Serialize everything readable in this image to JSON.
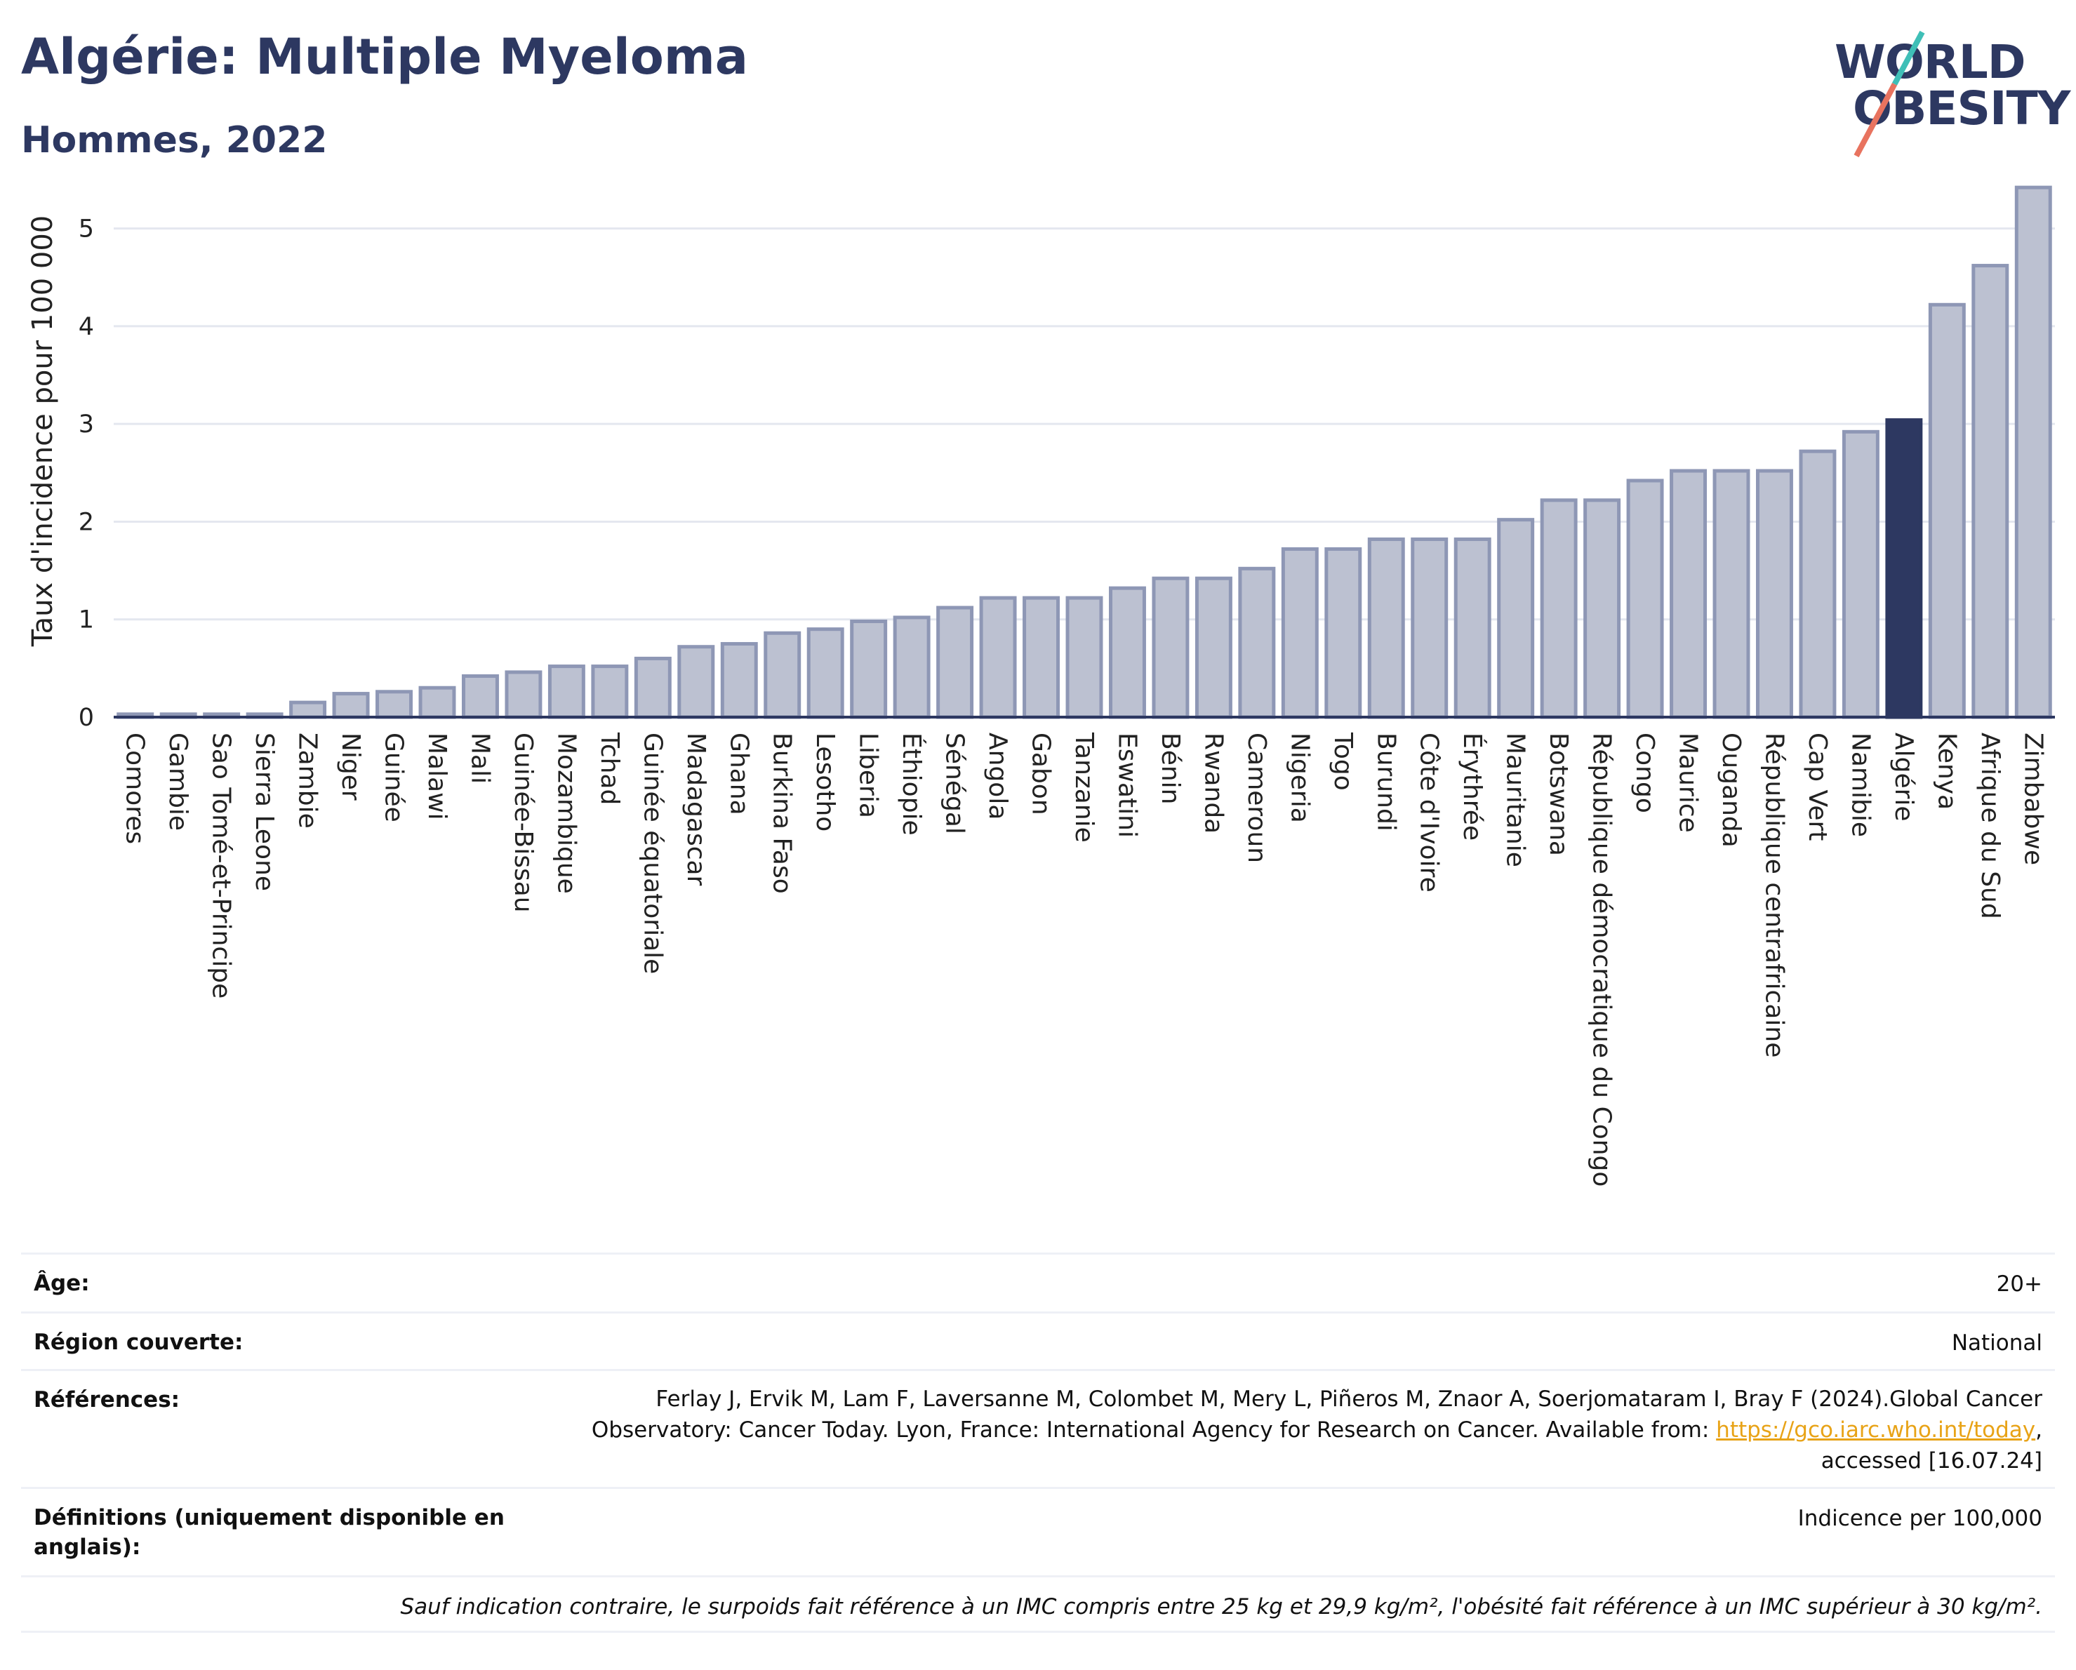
{
  "header": {
    "title": "Algérie: Multiple Myeloma",
    "subtitle": "Hommes, 2022",
    "logo_line1": "WORLD",
    "logo_line2": "OBESITY"
  },
  "colors": {
    "bar": "#bcc1d1",
    "bar_stroke": "#8e97b5",
    "highlight": "#2d3861",
    "grid": "#e4e7ef"
  },
  "chart_data": {
    "type": "bar",
    "ylabel": "Taux d'incidence pour 100 000",
    "ylim": [
      0,
      5.5
    ],
    "yticks": [
      0,
      1,
      2,
      3,
      4,
      5
    ],
    "grid": true,
    "highlight": "Algérie",
    "categories": [
      "Comores",
      "Gambie",
      "Sao Tomé-et-Principe",
      "Sierra Leone",
      "Zambie",
      "Niger",
      "Guinée",
      "Malawi",
      "Mali",
      "Guinée-Bissau",
      "Mozambique",
      "Tchad",
      "Guinée équatoriale",
      "Madagascar",
      "Ghana",
      "Burkina Faso",
      "Lesotho",
      "Liberia",
      "Éthiopie",
      "Sénégal",
      "Angola",
      "Gabon",
      "Tanzanie",
      "Eswatini",
      "Bénin",
      "Rwanda",
      "Cameroun",
      "Nigeria",
      "Togo",
      "Burundi",
      "Côte d'Ivoire",
      "Érythrée",
      "Mauritanie",
      "Botswana",
      "République démocratique du Congo",
      "Congo",
      "Maurice",
      "Ouganda",
      "République centrafricaine",
      "Cap Vert",
      "Namibie",
      "Algérie",
      "Kenya",
      "Afrique du Sud",
      "Zimbabwe"
    ],
    "values": [
      0.03,
      0.03,
      0.03,
      0.03,
      0.15,
      0.24,
      0.26,
      0.3,
      0.42,
      0.46,
      0.52,
      0.52,
      0.6,
      0.72,
      0.75,
      0.86,
      0.9,
      0.98,
      1.02,
      1.12,
      1.22,
      1.22,
      1.22,
      1.32,
      1.42,
      1.42,
      1.52,
      1.72,
      1.72,
      1.82,
      1.82,
      1.82,
      2.02,
      2.22,
      2.22,
      2.42,
      2.52,
      2.52,
      2.52,
      2.72,
      2.92,
      3.04,
      4.22,
      4.62,
      5.42
    ]
  },
  "info": {
    "age_label": "Âge:",
    "age_value": "20+",
    "region_label": "Région couverte:",
    "region_value": "National",
    "references_label": "Références:",
    "references_line1": "Ferlay J, Ervik M, Lam F, Laversanne M, Colombet M, Mery L, Piñeros M, Znaor A, Soerjomataram I, Bray F (2024).Global Cancer",
    "references_line2_prefix": "Observatory: Cancer Today. Lyon, France: International Agency for Research on Cancer. Available from: ",
    "references_link": "https://gco.iarc.who.int/today",
    "references_line2_suffix": ",",
    "references_line3": "accessed [16.07.24]",
    "definitions_label": "Définitions (uniquement disponible en anglais):",
    "definitions_value": "Indicence per 100,000",
    "note": "Sauf indication contraire, le surpoids fait référence à un IMC compris entre 25 kg et 29,9 kg/m², l'obésité fait référence à un IMC supérieur à 30 kg/m²."
  }
}
